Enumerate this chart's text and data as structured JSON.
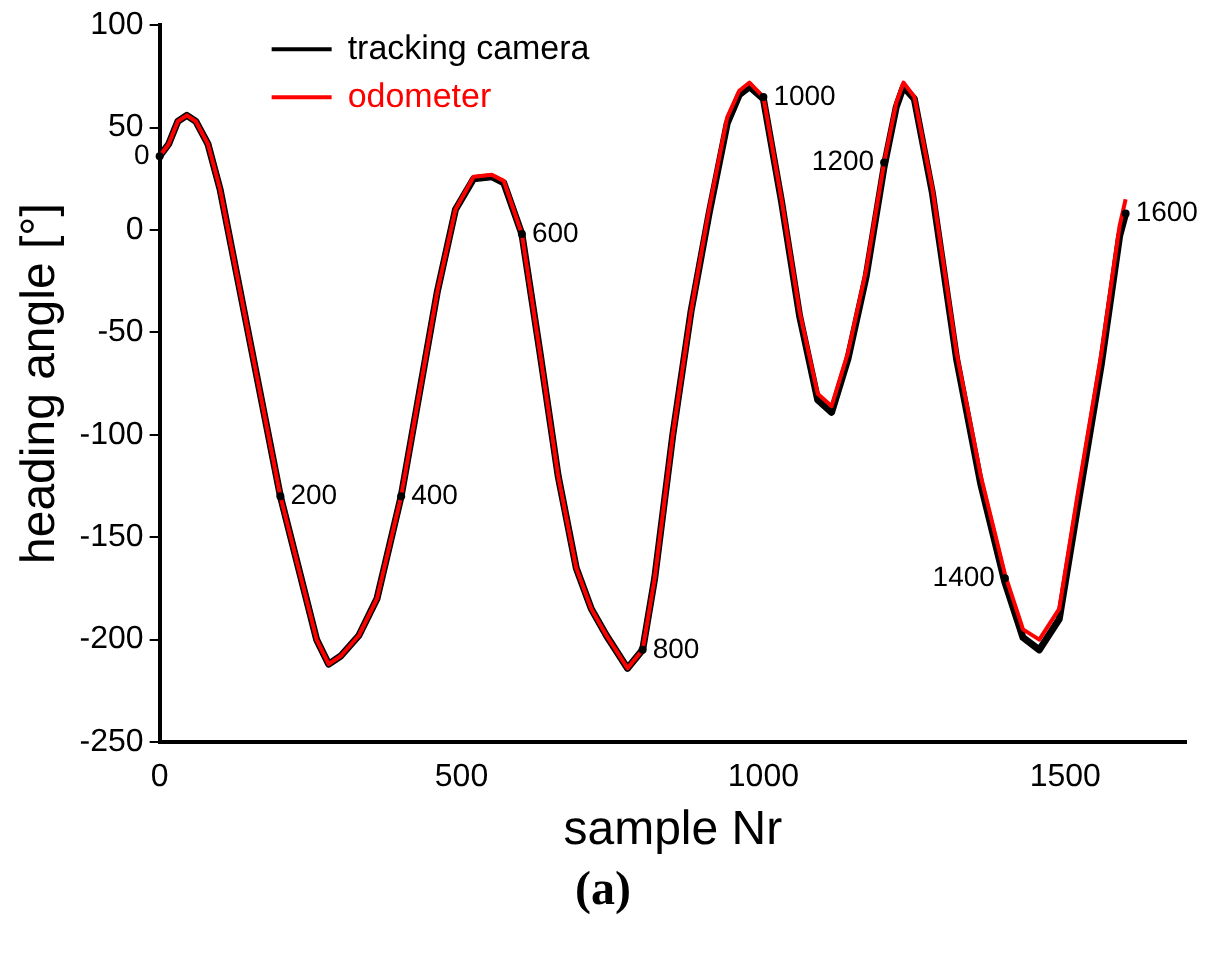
{
  "chart_data": {
    "type": "line",
    "xlabel": "sample Nr",
    "ylabel": "heading angle [°]",
    "xlim": [
      0,
      1700
    ],
    "xticks": [
      0,
      500,
      1000,
      1500
    ],
    "ylim": [
      -250,
      100
    ],
    "yticks": [
      100,
      50,
      0,
      -50,
      -100,
      -150,
      -200,
      -250
    ],
    "grid": false,
    "legend": "top left",
    "marker": "none",
    "line_style": "solid",
    "x": [
      0,
      15,
      30,
      45,
      60,
      80,
      100,
      130,
      160,
      200,
      230,
      260,
      280,
      300,
      330,
      360,
      400,
      430,
      460,
      490,
      520,
      550,
      570,
      600,
      630,
      660,
      690,
      715,
      740,
      775,
      800,
      820,
      850,
      880,
      910,
      940,
      960,
      977,
      1000,
      1030,
      1060,
      1090,
      1113,
      1140,
      1170,
      1200,
      1220,
      1232,
      1250,
      1280,
      1320,
      1360,
      1400,
      1430,
      1457,
      1490,
      1520,
      1560,
      1590,
      1600
    ],
    "series": [
      {
        "name": "tracking camera",
        "color": "#000000",
        "values": [
          36,
          42,
          53,
          56,
          53,
          42,
          20,
          -25,
          -70,
          -130,
          -165,
          -200,
          -212,
          -208,
          -198,
          -180,
          -130,
          -80,
          -30,
          10,
          25,
          26,
          23,
          -2,
          -60,
          -120,
          -165,
          -185,
          -198,
          -214,
          -205,
          -170,
          -100,
          -40,
          8,
          52,
          66,
          70,
          64,
          14,
          -42,
          -83,
          -89,
          -63,
          -23,
          31,
          60,
          70,
          64,
          18,
          -63,
          -124,
          -172,
          -199,
          -205,
          -190,
          -136,
          -65,
          -3,
          8
        ]
      },
      {
        "name": "odometer",
        "color": "#ff0000",
        "values": [
          36,
          42,
          53,
          56,
          53,
          42,
          20,
          -25,
          -70,
          -130,
          -165,
          -200,
          -212,
          -208,
          -198,
          -180,
          -130,
          -80,
          -30,
          10,
          26,
          27,
          24,
          -2,
          -60,
          -120,
          -165,
          -185,
          -198,
          -214,
          -205,
          -170,
          -100,
          -40,
          10,
          55,
          68,
          72,
          65,
          15,
          -40,
          -80,
          -86,
          -60,
          -20,
          33,
          62,
          72,
          65,
          20,
          -60,
          -120,
          -168,
          -195,
          -200,
          -185,
          -130,
          -60,
          2,
          15
        ]
      }
    ],
    "annotations": [
      {
        "text": "0",
        "x": 0,
        "y": 36
      },
      {
        "text": "200",
        "x": 200,
        "y": -130
      },
      {
        "text": "400",
        "x": 400,
        "y": -130
      },
      {
        "text": "600",
        "x": 600,
        "y": -2
      },
      {
        "text": "800",
        "x": 800,
        "y": -205
      },
      {
        "text": "1000",
        "x": 1000,
        "y": 65
      },
      {
        "text": "1200",
        "x": 1200,
        "y": 33
      },
      {
        "text": "1400",
        "x": 1400,
        "y": -170
      },
      {
        "text": "1600",
        "x": 1600,
        "y": 8
      },
      "(a)"
    ]
  }
}
